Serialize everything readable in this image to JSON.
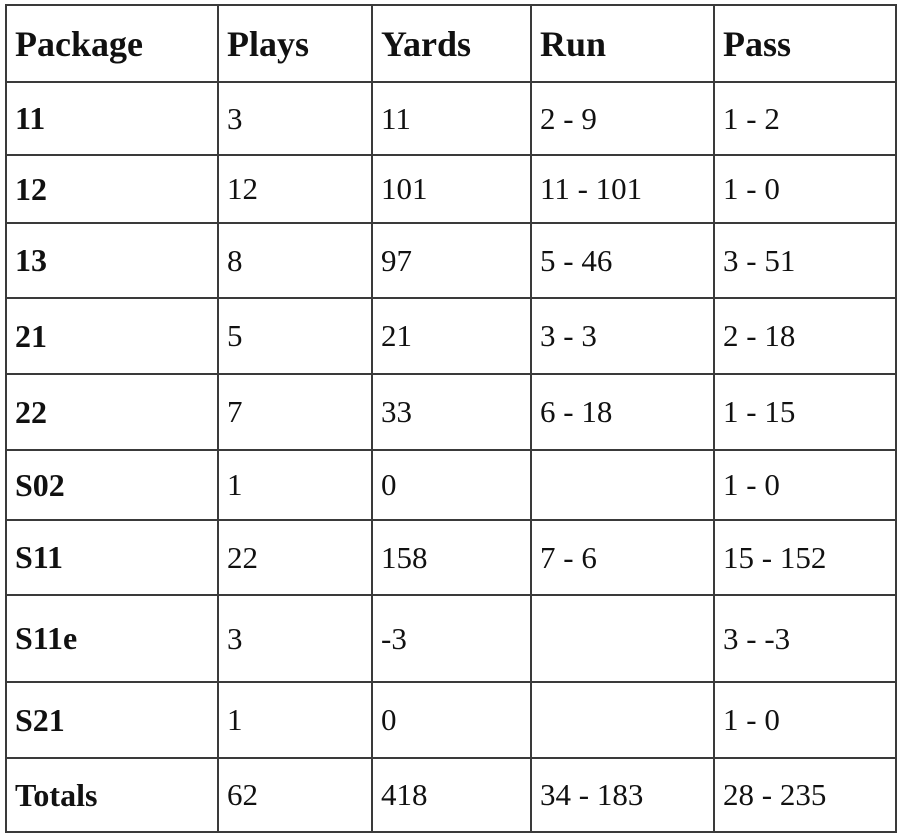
{
  "table": {
    "header": [
      "Package",
      "Plays",
      "Yards",
      "Run",
      "Pass"
    ],
    "rows": [
      [
        "11",
        "3",
        "11",
        "2 - 9",
        "1 - 2"
      ],
      [
        "12",
        "12",
        "101",
        "11 - 101",
        "1 - 0"
      ],
      [
        "13",
        "8",
        "97",
        "5 - 46",
        "3 - 51"
      ],
      [
        "21",
        "5",
        "21",
        "3 - 3",
        "2 - 18"
      ],
      [
        "22",
        "7",
        "33",
        "6 - 18",
        "1 - 15"
      ],
      [
        "S02",
        "1",
        "0",
        null,
        "1 - 0"
      ],
      [
        "S11",
        "22",
        "158",
        "7 - 6",
        "15 - 152"
      ],
      [
        "S11e",
        "3",
        "-3",
        null,
        "3 - -3"
      ],
      [
        "S21",
        "1",
        "0",
        null,
        "1 - 0"
      ],
      [
        "Totals",
        "62",
        "418",
        "34 - 183",
        "28 - 235"
      ]
    ]
  }
}
